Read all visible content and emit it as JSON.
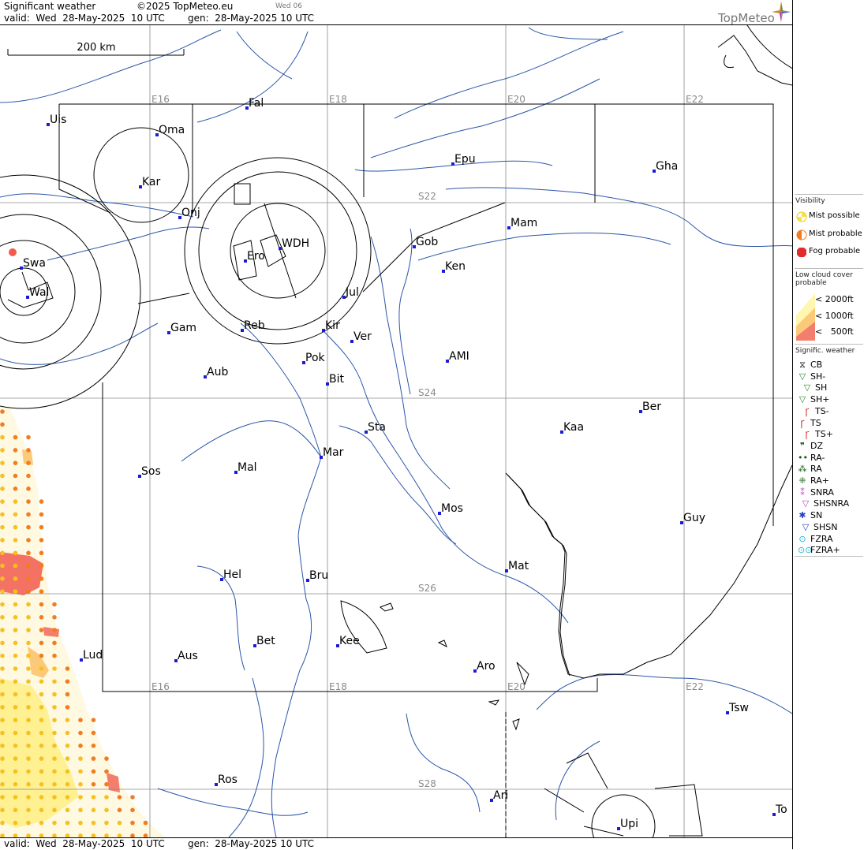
{
  "header": {
    "product": "Significant weather",
    "copyright": "©2025 TopMeteo.eu",
    "day_tag": "Wed 06",
    "valid": "valid:  Wed  28-May-2025  10 UTC",
    "generated": "gen:  28-May-2025 10 UTC",
    "logo": "TopMeteo"
  },
  "footer": {
    "valid": "valid:  Wed  28-May-2025  10 UTC",
    "generated": "gen:  28-May-2025 10 UTC"
  },
  "scale_bar": {
    "label": "200 km"
  },
  "grid": {
    "longitudes": [
      "E16",
      "E18",
      "E20",
      "E22"
    ],
    "latitudes": [
      "S22",
      "S24",
      "S26",
      "S28"
    ]
  },
  "places": [
    "Uis",
    "Fal",
    "Oma",
    "Kar",
    "Onj",
    "Swa",
    "Wal",
    "Ero",
    "WDH",
    "Gam",
    "Reb",
    "Kir",
    "Jul",
    "Ver",
    "Pok",
    "Bit",
    "Aub",
    "Epu",
    "Gha",
    "Gob",
    "Mam",
    "Ken",
    "AMI",
    "Sta",
    "Mar",
    "Sos",
    "Mal",
    "Kaa",
    "Ber",
    "Mos",
    "Guy",
    "Hel",
    "Bru",
    "Mat",
    "Lud",
    "Aus",
    "Bet",
    "Kee",
    "Aro",
    "Tsw",
    "Ros",
    "Ari",
    "Upi",
    "To"
  ],
  "legend": {
    "visibility": {
      "title": "Visibility",
      "items": [
        {
          "label": "Mist possible",
          "color": "#f5e04a"
        },
        {
          "label": "Mist probable",
          "color": "#f07d22"
        },
        {
          "label": "Fog probable",
          "color": "#e02c2c"
        }
      ]
    },
    "low_cloud": {
      "title": "Low cloud cover probable",
      "items": [
        {
          "label": "< 2000ft",
          "color": "#fff6b0"
        },
        {
          "label": "< 1000ft",
          "color": "#fbc978"
        },
        {
          "label": "<   500ft",
          "color": "#f47e6e"
        }
      ]
    },
    "signif": {
      "title": "Signific. weather",
      "items": [
        {
          "label": "CB",
          "icon": "cb-icon",
          "color": "#000000"
        },
        {
          "label": "SH-",
          "icon": "shower-light-icon",
          "color": "#2e8b2e"
        },
        {
          "label": "SH",
          "icon": "shower-icon",
          "color": "#2e8b2e"
        },
        {
          "label": "SH+",
          "icon": "shower-heavy-icon",
          "color": "#2e8b2e"
        },
        {
          "label": "TS-",
          "icon": "thunderstorm-light-icon",
          "color": "#d42020"
        },
        {
          "label": "TS",
          "icon": "thunderstorm-icon",
          "color": "#d42020"
        },
        {
          "label": "TS+",
          "icon": "thunderstorm-heavy-icon",
          "color": "#d42020"
        },
        {
          "label": "DZ",
          "icon": "drizzle-icon",
          "color": "#0a5a0a"
        },
        {
          "label": "RA-",
          "icon": "rain-light-icon",
          "color": "#0a5a0a"
        },
        {
          "label": "RA",
          "icon": "rain-icon",
          "color": "#0a5a0a"
        },
        {
          "label": "RA+",
          "icon": "rain-heavy-icon",
          "color": "#0a5a0a"
        },
        {
          "label": "SNRA",
          "icon": "sleet-icon",
          "color": "#c040c0"
        },
        {
          "label": "SHSNRA",
          "icon": "sleet-shower-icon",
          "color": "#c040c0"
        },
        {
          "label": "SN",
          "icon": "snow-icon",
          "color": "#2040c0"
        },
        {
          "label": "SHSN",
          "icon": "snow-shower-icon",
          "color": "#2040c0"
        },
        {
          "label": "FZRA",
          "icon": "freezing-rain-icon",
          "color": "#20b0d0"
        },
        {
          "label": "FZRA+",
          "icon": "freezing-rain-heavy-icon",
          "color": "#20b0d0"
        }
      ]
    }
  }
}
